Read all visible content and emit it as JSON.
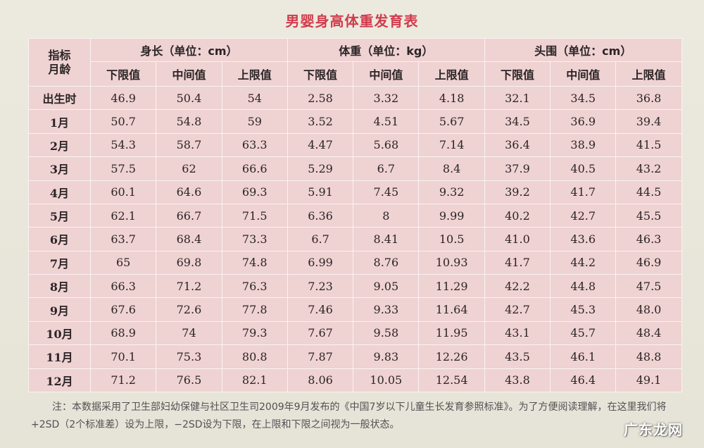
{
  "title": "男婴身高体重发育表",
  "corner_header": {
    "line1": "指标",
    "line2": "月龄"
  },
  "groups": [
    {
      "label": "身长（单位：cm）"
    },
    {
      "label": "体重（单位：kg）"
    },
    {
      "label": "头围（单位：cm）"
    }
  ],
  "sub_headers": [
    "下限值",
    "中间值",
    "上限值"
  ],
  "rows": [
    {
      "age": "出生时",
      "values": [
        "46.9",
        "50.4",
        "54",
        "2.58",
        "3.32",
        "4.18",
        "32.1",
        "34.5",
        "36.8"
      ]
    },
    {
      "age": "1月",
      "values": [
        "50.7",
        "54.8",
        "59",
        "3.52",
        "4.51",
        "5.67",
        "34.5",
        "36.9",
        "39.4"
      ]
    },
    {
      "age": "2月",
      "values": [
        "54.3",
        "58.7",
        "63.3",
        "4.47",
        "5.68",
        "7.14",
        "36.4",
        "38.9",
        "41.5"
      ]
    },
    {
      "age": "3月",
      "values": [
        "57.5",
        "62",
        "66.6",
        "5.29",
        "6.7",
        "8.4",
        "37.9",
        "40.5",
        "43.2"
      ]
    },
    {
      "age": "4月",
      "values": [
        "60.1",
        "64.6",
        "69.3",
        "5.91",
        "7.45",
        "9.32",
        "39.2",
        "41.7",
        "44.5"
      ]
    },
    {
      "age": "5月",
      "values": [
        "62.1",
        "66.7",
        "71.5",
        "6.36",
        "8",
        "9.99",
        "40.2",
        "42.7",
        "45.5"
      ]
    },
    {
      "age": "6月",
      "values": [
        "63.7",
        "68.4",
        "73.3",
        "6.7",
        "8.41",
        "10.5",
        "41.0",
        "43.6",
        "46.3"
      ]
    },
    {
      "age": "7月",
      "values": [
        "65",
        "69.8",
        "74.8",
        "6.99",
        "8.76",
        "10.93",
        "41.7",
        "44.2",
        "46.9"
      ]
    },
    {
      "age": "8月",
      "values": [
        "66.3",
        "71.2",
        "76.3",
        "7.23",
        "9.05",
        "11.29",
        "42.2",
        "44.8",
        "47.5"
      ]
    },
    {
      "age": "9月",
      "values": [
        "67.6",
        "72.6",
        "77.8",
        "7.46",
        "9.33",
        "11.64",
        "42.7",
        "45.3",
        "48.0"
      ]
    },
    {
      "age": "10月",
      "values": [
        "68.9",
        "74",
        "79.3",
        "7.67",
        "9.58",
        "11.95",
        "43.1",
        "45.7",
        "48.4"
      ]
    },
    {
      "age": "11月",
      "values": [
        "70.1",
        "75.3",
        "80.8",
        "7.87",
        "9.83",
        "12.26",
        "43.5",
        "46.1",
        "48.8"
      ]
    },
    {
      "age": "12月",
      "values": [
        "71.2",
        "76.5",
        "82.1",
        "8.06",
        "10.05",
        "12.54",
        "43.8",
        "46.4",
        "49.1"
      ]
    }
  ],
  "note": "注：本数据采用了卫生部妇幼保健与社区卫生司2009年9月发布的《中国7岁以下儿童生长发育参照标准》。为了方便阅读理解，在这里我们将+2SD（2个标准差）设为上限，−2SD设为下限，在上限和下限之间视为一般状态。",
  "watermark": "广东龙网",
  "colors": {
    "title": "#d23b4d",
    "table_bg": "#efd2d2",
    "grid": "#faf3f3",
    "paper": "#e9e7dc"
  }
}
